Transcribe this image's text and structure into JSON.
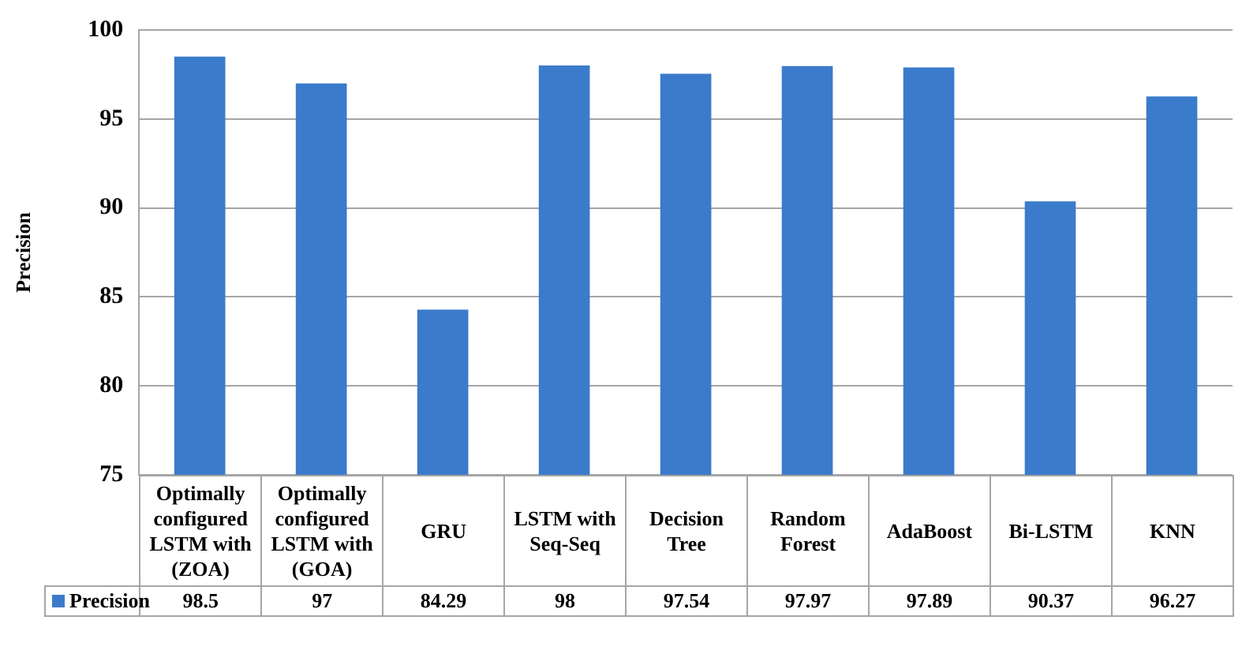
{
  "chart_data": {
    "type": "bar",
    "ylabel": "Precision",
    "categories": [
      "Optimally configured LSTM with (ZOA)",
      "Optimally configured LSTM with (GOA)",
      "GRU",
      "LSTM with Seq-Seq",
      "Decision Tree",
      "Random Forest",
      "AdaBoost",
      "Bi-LSTM",
      "KNN"
    ],
    "series": [
      {
        "name": "Precision",
        "color": "#3b7bcb",
        "values": [
          98.5,
          97,
          84.29,
          98,
          97.54,
          97.97,
          97.89,
          90.37,
          96.27
        ]
      }
    ],
    "ylim": [
      75,
      100
    ],
    "yticks": [
      75,
      80,
      85,
      90,
      95,
      100
    ],
    "grid": "y",
    "legend": "bottom",
    "data_labels": true
  }
}
